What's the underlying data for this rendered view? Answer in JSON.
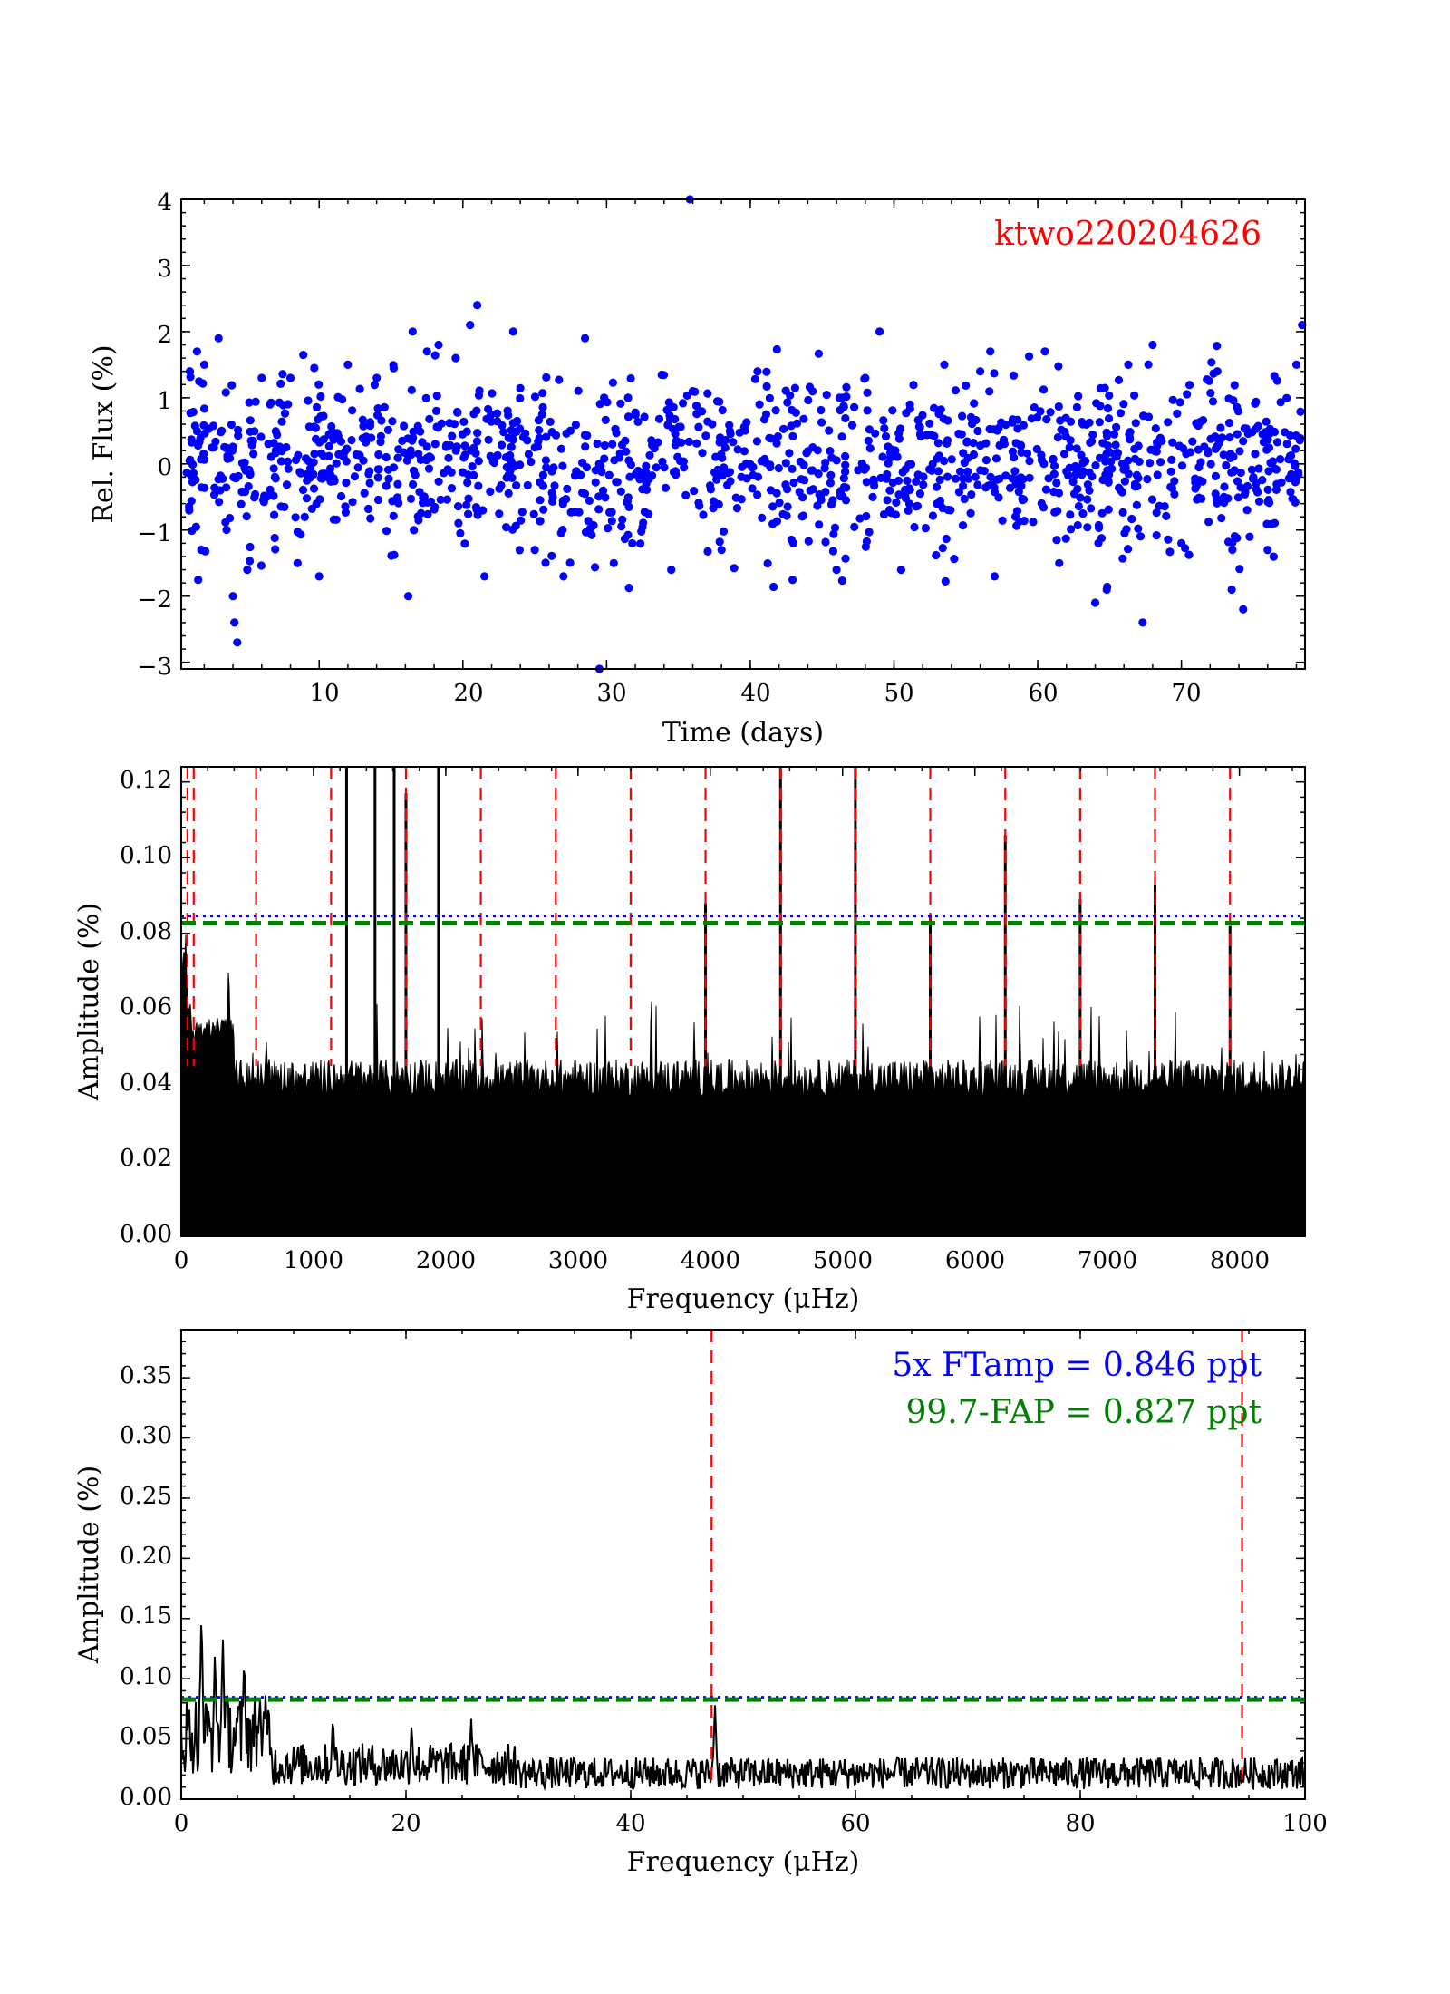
{
  "chart_data": [
    {
      "type": "scatter",
      "title": "",
      "xlabel": "Time (days)",
      "ylabel": "Rel. Flux (%)",
      "xlim": [
        0.4,
        78.6
      ],
      "ylim": [
        -3.1,
        4.0
      ],
      "xticks": [
        10,
        20,
        30,
        40,
        50,
        60,
        70
      ],
      "yticks": [
        -3,
        -2,
        -1,
        0,
        1,
        2,
        3,
        4
      ],
      "ytick_labels": [
        "−3",
        "−2",
        "−1",
        "0",
        "1",
        "2",
        "3",
        "4"
      ],
      "annotations": [
        {
          "text": "ktwo220204626",
          "color": "#ff0000",
          "position": "top-right"
        }
      ],
      "grid": false,
      "series": [
        {
          "color": "#0000ff",
          "marker": "dot",
          "note_points_sample": [
            {
              "x": 1.0,
              "y": 1.4
            },
            {
              "x": 1.5,
              "y": 1.7
            },
            {
              "x": 2.0,
              "y": 1.5
            },
            {
              "x": 3.0,
              "y": 1.9
            },
            {
              "x": 4.0,
              "y": -2.0
            },
            {
              "x": 4.3,
              "y": -2.7
            },
            {
              "x": 4.1,
              "y": -2.4
            },
            {
              "x": 5.0,
              "y": -1.6
            },
            {
              "x": 6.0,
              "y": 1.3
            },
            {
              "x": 8.0,
              "y": 1.3
            },
            {
              "x": 8.5,
              "y": -1.5
            },
            {
              "x": 10.0,
              "y": -1.7
            },
            {
              "x": 12.0,
              "y": 1.5
            },
            {
              "x": 14.0,
              "y": 1.3
            },
            {
              "x": 16.5,
              "y": 2.0
            },
            {
              "x": 16.2,
              "y": -2.0
            },
            {
              "x": 17.5,
              "y": 1.7
            },
            {
              "x": 19.5,
              "y": 1.6
            },
            {
              "x": 20.5,
              "y": 2.1
            },
            {
              "x": 21.0,
              "y": 2.4
            },
            {
              "x": 21.5,
              "y": -1.7
            },
            {
              "x": 23.5,
              "y": 2.0
            },
            {
              "x": 25.0,
              "y": -1.3
            },
            {
              "x": 27.0,
              "y": -1.7
            },
            {
              "x": 28.5,
              "y": 1.9
            },
            {
              "x": 29.5,
              "y": -3.1
            },
            {
              "x": 30.5,
              "y": -1.5
            },
            {
              "x": 31.5,
              "y": 1.0
            },
            {
              "x": 34.5,
              "y": -1.6
            },
            {
              "x": 35.8,
              "y": 4.0
            },
            {
              "x": 36.0,
              "y": 1.1
            },
            {
              "x": 38.0,
              "y": -1.3
            },
            {
              "x": 40.5,
              "y": 1.4
            },
            {
              "x": 43.0,
              "y": -1.2
            },
            {
              "x": 46.0,
              "y": -1.6
            },
            {
              "x": 48.0,
              "y": 1.3
            },
            {
              "x": 49.0,
              "y": 2.0
            },
            {
              "x": 50.5,
              "y": -1.6
            },
            {
              "x": 53.5,
              "y": 1.5
            },
            {
              "x": 56.0,
              "y": 1.4
            },
            {
              "x": 56.7,
              "y": 1.7
            },
            {
              "x": 57.0,
              "y": -1.7
            },
            {
              "x": 60.5,
              "y": 1.7
            },
            {
              "x": 61.5,
              "y": -1.5
            },
            {
              "x": 64.0,
              "y": -2.1
            },
            {
              "x": 64.8,
              "y": -1.9
            },
            {
              "x": 66.3,
              "y": 1.5
            },
            {
              "x": 67.3,
              "y": -2.4
            },
            {
              "x": 68.0,
              "y": 1.8
            },
            {
              "x": 72.5,
              "y": 1.4
            },
            {
              "x": 73.5,
              "y": -1.9
            },
            {
              "x": 74.3,
              "y": -2.2
            },
            {
              "x": 78.0,
              "y": 1.5
            },
            {
              "x": 78.4,
              "y": 2.1
            },
            {
              "x": 76.0,
              "y": -1.3
            },
            {
              "x": 70.0,
              "y": -1.2
            }
          ]
        }
      ]
    },
    {
      "type": "line",
      "title": "",
      "xlabel": "Frequency (μHz)",
      "ylabel": "Amplitude (%)",
      "xlim": [
        0,
        8496
      ],
      "ylim": [
        0.0,
        0.124
      ],
      "xticks": [
        0,
        1000,
        2000,
        3000,
        4000,
        5000,
        6000,
        7000,
        8000
      ],
      "yticks": [
        0.0,
        0.02,
        0.04,
        0.06,
        0.08,
        0.1,
        0.12
      ],
      "ytick_labels": [
        "0.00",
        "0.02",
        "0.04",
        "0.06",
        "0.08",
        "0.10",
        "0.12"
      ],
      "grid": false,
      "threshold_lines": [
        {
          "value": 0.0846,
          "color": "#0000ff",
          "style": "dotted"
        },
        {
          "value": 0.0827,
          "color": "#008000",
          "style": "dashed"
        }
      ],
      "vertical_lines": {
        "color": "#ff0000",
        "style": "dashed",
        "x": [
          47.2,
          94.4,
          566,
          1133,
          1699,
          2265,
          2832,
          3398,
          3964,
          4531,
          5097,
          5663,
          6230,
          6796,
          7362,
          7929
        ]
      },
      "peaks": [
        {
          "x": 1250,
          "y": 0.124
        },
        {
          "x": 1465,
          "y": 0.124
        },
        {
          "x": 1610,
          "y": 0.124
        },
        {
          "x": 1699,
          "y": 0.117
        },
        {
          "x": 1945,
          "y": 0.124
        },
        {
          "x": 3964,
          "y": 0.088
        },
        {
          "x": 4531,
          "y": 0.124
        },
        {
          "x": 5097,
          "y": 0.124
        },
        {
          "x": 5663,
          "y": 0.085
        },
        {
          "x": 6230,
          "y": 0.106
        },
        {
          "x": 6796,
          "y": 0.089
        },
        {
          "x": 7362,
          "y": 0.093
        },
        {
          "x": 7929,
          "y": 0.082
        }
      ],
      "noise_level": 0.045,
      "line_color": "#000000"
    },
    {
      "type": "line",
      "title": "",
      "xlabel": "Frequency (μHz)",
      "ylabel": "Amplitude (%)",
      "xlim": [
        0,
        100
      ],
      "ylim": [
        0.0,
        0.39
      ],
      "xticks": [
        0,
        20,
        40,
        60,
        80,
        100
      ],
      "yticks": [
        0.0,
        0.05,
        0.1,
        0.15,
        0.2,
        0.25,
        0.3,
        0.35
      ],
      "ytick_labels": [
        "0.00",
        "0.05",
        "0.10",
        "0.15",
        "0.20",
        "0.25",
        "0.30",
        "0.35"
      ],
      "grid": false,
      "threshold_lines": [
        {
          "value": 0.0846,
          "color": "#0000ff",
          "style": "dotted"
        },
        {
          "value": 0.0827,
          "color": "#008000",
          "style": "dashed"
        }
      ],
      "vertical_lines": {
        "color": "#ff0000",
        "style": "dashed",
        "x": [
          47.2,
          94.4
        ]
      },
      "annotations": [
        {
          "text": "5x FTamp = 0.846 ppt",
          "color": "#0000ff",
          "position": "top-right"
        },
        {
          "text": "99.7-FAP = 0.827 ppt",
          "color": "#008000",
          "position": "top-right"
        }
      ],
      "peaks": [
        {
          "x": 1.8,
          "y": 0.158
        },
        {
          "x": 3.0,
          "y": 0.125
        },
        {
          "x": 3.7,
          "y": 0.137
        },
        {
          "x": 5.6,
          "y": 0.121
        },
        {
          "x": 7.0,
          "y": 0.088
        },
        {
          "x": 13.5,
          "y": 0.07
        },
        {
          "x": 20.5,
          "y": 0.063
        },
        {
          "x": 25.8,
          "y": 0.068
        },
        {
          "x": 47.5,
          "y": 0.078
        }
      ],
      "line_color": "#000000"
    }
  ]
}
